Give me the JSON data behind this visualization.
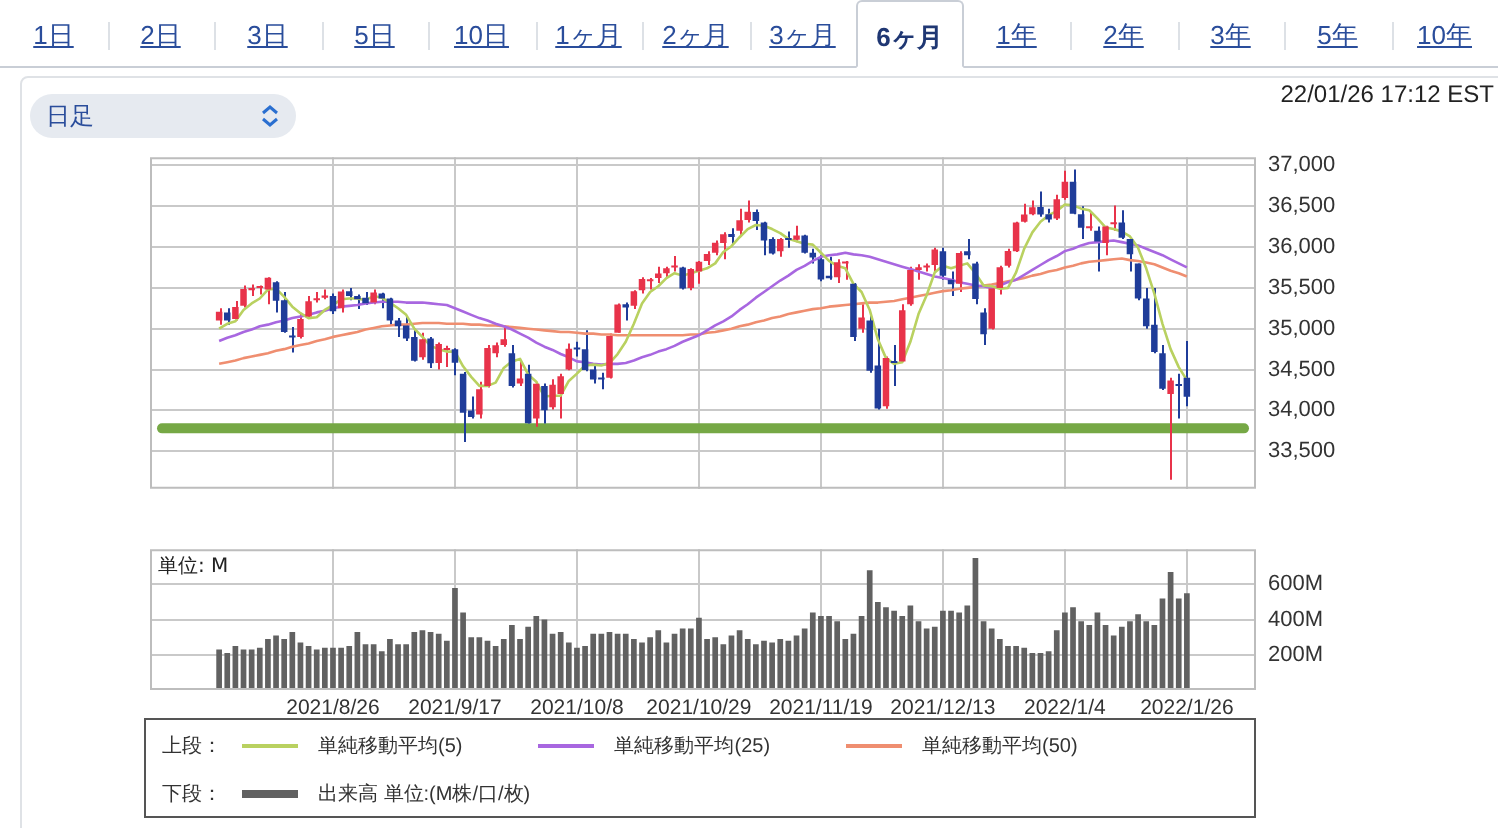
{
  "chart_data": [
    {
      "type": "other",
      "categories": [
        "1日",
        "2日",
        "3日",
        "5日",
        "10日",
        "1ヶ月",
        "2ヶ月",
        "3ヶ月",
        "6ヶ月",
        "1年",
        "2年",
        "3年",
        "5年",
        "10年"
      ],
      "annotations": [
        "日足",
        "22/01/26 17:12 EST"
      ]
    },
    {
      "type": "candlestick",
      "legend": "bottom",
      "legend_title": "上段：",
      "grid": true,
      "tick_labels": "y",
      "marker": "none",
      "categories": [
        null,
        null,
        null,
        null,
        null,
        null,
        null,
        null,
        null,
        null,
        null,
        null,
        null,
        null,
        "2021/8/26",
        null,
        null,
        null,
        null,
        null,
        null,
        null,
        null,
        null,
        null,
        null,
        null,
        null,
        null,
        "2021/9/17",
        null,
        null,
        null,
        null,
        null,
        null,
        null,
        null,
        null,
        null,
        null,
        null,
        null,
        null,
        "2021/10/8",
        null,
        null,
        null,
        null,
        null,
        null,
        null,
        null,
        null,
        null,
        null,
        null,
        null,
        null,
        "2021/10/29",
        null,
        null,
        null,
        null,
        null,
        null,
        null,
        null,
        null,
        null,
        null,
        null,
        null,
        null,
        "2021/11/19",
        null,
        null,
        null,
        null,
        null,
        null,
        null,
        null,
        null,
        null,
        null,
        null,
        null,
        null,
        "2021/12/13",
        null,
        null,
        null,
        null,
        null,
        null,
        null,
        null,
        null,
        null,
        null,
        null,
        null,
        null,
        "2022/1/4",
        null,
        null,
        null,
        null,
        null,
        null,
        null,
        null,
        null,
        null,
        null,
        null,
        null,
        null,
        "2022/1/26"
      ],
      "ohlc": [
        [
          35100,
          35250,
          35050,
          35208
        ],
        [
          35200,
          35250,
          35050,
          35101
        ],
        [
          35120,
          35340,
          35100,
          35265
        ],
        [
          35280,
          35530,
          35260,
          35485
        ],
        [
          35470,
          35540,
          35400,
          35500
        ],
        [
          35500,
          35530,
          35420,
          35515
        ],
        [
          35480,
          35630,
          35300,
          35625
        ],
        [
          35570,
          35580,
          35200,
          35343
        ],
        [
          35350,
          35450,
          34950,
          34961
        ],
        [
          34900,
          35020,
          34710,
          34894
        ],
        [
          34900,
          35180,
          34880,
          35120
        ],
        [
          35150,
          35400,
          35140,
          35336
        ],
        [
          35350,
          35450,
          35320,
          35367
        ],
        [
          35380,
          35480,
          35360,
          35406
        ],
        [
          35400,
          35430,
          35180,
          35214
        ],
        [
          35250,
          35480,
          35200,
          35456
        ],
        [
          35460,
          35500,
          35350,
          35400
        ],
        [
          35400,
          35420,
          35240,
          35361
        ],
        [
          35380,
          35450,
          35290,
          35313
        ],
        [
          35320,
          35480,
          35300,
          35444
        ],
        [
          35430,
          35440,
          35250,
          35369
        ],
        [
          35370,
          35380,
          35050,
          35100
        ],
        [
          35100,
          35130,
          34900,
          35031
        ],
        [
          35040,
          35150,
          34850,
          34879
        ],
        [
          34900,
          35000,
          34600,
          34608
        ],
        [
          34650,
          34950,
          34620,
          34870
        ],
        [
          34880,
          34900,
          34520,
          34578
        ],
        [
          34580,
          34830,
          34500,
          34814
        ],
        [
          34740,
          34790,
          34530,
          34751
        ],
        [
          34750,
          34760,
          34430,
          34584
        ],
        [
          34450,
          34470,
          33613,
          33970
        ],
        [
          34000,
          34170,
          33900,
          33919
        ],
        [
          33950,
          34350,
          33900,
          34258
        ],
        [
          34300,
          34800,
          34280,
          34765
        ],
        [
          34700,
          34830,
          34650,
          34798
        ],
        [
          34800,
          35040,
          34780,
          34870
        ],
        [
          34700,
          34800,
          34280,
          34300
        ],
        [
          34330,
          34600,
          34300,
          34391
        ],
        [
          34450,
          34560,
          33840,
          33844
        ],
        [
          33900,
          34350,
          33800,
          34326
        ],
        [
          34300,
          34330,
          33840,
          34003
        ],
        [
          34040,
          34380,
          34010,
          34315
        ],
        [
          34200,
          34450,
          33900,
          34417
        ],
        [
          34500,
          34820,
          34490,
          34755
        ],
        [
          34760,
          34840,
          34660,
          34746
        ],
        [
          34750,
          34980,
          34480,
          34496
        ],
        [
          34500,
          34560,
          34330,
          34378
        ],
        [
          34400,
          34460,
          34260,
          34377
        ],
        [
          34400,
          34940,
          34390,
          34912
        ],
        [
          34950,
          35310,
          34950,
          35295
        ],
        [
          35300,
          35320,
          35100,
          35259
        ],
        [
          35280,
          35470,
          35240,
          35458
        ],
        [
          35470,
          35630,
          35430,
          35609
        ],
        [
          35580,
          35620,
          35480,
          35603
        ],
        [
          35620,
          35760,
          35560,
          35677
        ],
        [
          35680,
          35760,
          35630,
          35741
        ],
        [
          35750,
          35890,
          35700,
          35757
        ],
        [
          35750,
          35760,
          35480,
          35491
        ],
        [
          35500,
          35740,
          35470,
          35731
        ],
        [
          35700,
          35830,
          35550,
          35820
        ],
        [
          35830,
          35950,
          35780,
          35914
        ],
        [
          35930,
          36080,
          35900,
          36053
        ],
        [
          36050,
          36180,
          35850,
          36158
        ],
        [
          36160,
          36230,
          36030,
          36124
        ],
        [
          36200,
          36470,
          36150,
          36328
        ],
        [
          36330,
          36570,
          36300,
          36432
        ],
        [
          36430,
          36460,
          36210,
          36320
        ],
        [
          36300,
          36310,
          35900,
          36080
        ],
        [
          36100,
          36120,
          35910,
          35921
        ],
        [
          35950,
          36110,
          35880,
          36100
        ],
        [
          36100,
          36190,
          35990,
          36087
        ],
        [
          36090,
          36260,
          36060,
          36142
        ],
        [
          36140,
          36150,
          35920,
          35931
        ],
        [
          35930,
          35980,
          35800,
          35871
        ],
        [
          35850,
          35900,
          35580,
          35602
        ],
        [
          35650,
          35880,
          35600,
          35619
        ],
        [
          35630,
          35850,
          35560,
          35814
        ],
        [
          35800,
          35830,
          35600,
          35804
        ],
        [
          35550,
          35560,
          34850,
          34899
        ],
        [
          35000,
          35300,
          34950,
          35136
        ],
        [
          35100,
          35170,
          34460,
          34484
        ],
        [
          34550,
          35000,
          34010,
          34022
        ],
        [
          34050,
          34660,
          34020,
          34640
        ],
        [
          34600,
          34800,
          34300,
          34580
        ],
        [
          34600,
          35300,
          34600,
          35227
        ],
        [
          35300,
          35760,
          35280,
          35719
        ],
        [
          35720,
          35790,
          35600,
          35754
        ],
        [
          35750,
          35800,
          35700,
          35755
        ],
        [
          35780,
          35990,
          35700,
          35971
        ],
        [
          35950,
          35990,
          35600,
          35650
        ],
        [
          35600,
          35700,
          35400,
          35544
        ],
        [
          35550,
          35950,
          35450,
          35927
        ],
        [
          35950,
          36100,
          35850,
          35898
        ],
        [
          35800,
          35820,
          35300,
          35365
        ],
        [
          35200,
          35250,
          34800,
          34932
        ],
        [
          35000,
          35500,
          34990,
          35493
        ],
        [
          35500,
          35770,
          35420,
          35754
        ],
        [
          35770,
          35980,
          35750,
          35951
        ],
        [
          35950,
          36310,
          35940,
          36302
        ],
        [
          36310,
          36530,
          36300,
          36398
        ],
        [
          36400,
          36570,
          36390,
          36488
        ],
        [
          36490,
          36680,
          36370,
          36398
        ],
        [
          36400,
          36470,
          36300,
          36338
        ],
        [
          36350,
          36640,
          36330,
          36585
        ],
        [
          36600,
          36934,
          36580,
          36800
        ],
        [
          36800,
          36950,
          36400,
          36408
        ],
        [
          36400,
          36500,
          36100,
          36236
        ],
        [
          36230,
          36440,
          36200,
          36232
        ],
        [
          36200,
          36250,
          35700,
          36068
        ],
        [
          36050,
          36260,
          35900,
          36252
        ],
        [
          36280,
          36510,
          36200,
          36290
        ],
        [
          36300,
          36450,
          36100,
          36114
        ],
        [
          36100,
          36120,
          35700,
          35912
        ],
        [
          35800,
          35800,
          35350,
          35369
        ],
        [
          35370,
          35500,
          35000,
          35029
        ],
        [
          35050,
          35500,
          34700,
          34715
        ],
        [
          34700,
          34800,
          34250,
          34265
        ],
        [
          34200,
          34400,
          33150,
          34365
        ],
        [
          34300,
          34450,
          33900,
          34298
        ],
        [
          34400,
          34850,
          34050,
          34168
        ]
      ],
      "colors": [
        "#e8334a",
        "#1f3c99",
        "#e8334a",
        "#e8334a",
        "#e8334a",
        "#e8334a",
        "#e8334a",
        "#1f3c99",
        "#1f3c99",
        "#1f3c99",
        "#e8334a",
        "#e8334a",
        "#e8334a",
        "#e8334a",
        "#1f3c99",
        "#e8334a",
        "#1f3c99",
        "#1f3c99",
        "#1f3c99",
        "#e8334a",
        "#1f3c99",
        "#1f3c99",
        "#1f3c99",
        "#1f3c99",
        "#1f3c99",
        "#e8334a",
        "#1f3c99",
        "#e8334a",
        "#e8334a",
        "#1f3c99",
        "#1f3c99",
        "#1f3c99",
        "#e8334a",
        "#e8334a",
        "#e8334a",
        "#e8334a",
        "#1f3c99",
        "#e8334a",
        "#1f3c99",
        "#e8334a",
        "#1f3c99",
        "#e8334a",
        "#e8334a",
        "#e8334a",
        "#1f3c99",
        "#1f3c99",
        "#1f3c99",
        "#1f3c99",
        "#e8334a",
        "#e8334a",
        "#1f3c99",
        "#e8334a",
        "#e8334a",
        "#e8334a",
        "#e8334a",
        "#e8334a",
        "#e8334a",
        "#1f3c99",
        "#e8334a",
        "#e8334a",
        "#e8334a",
        "#e8334a",
        "#e8334a",
        "#1f3c99",
        "#e8334a",
        "#e8334a",
        "#1f3c99",
        "#1f3c99",
        "#1f3c99",
        "#e8334a",
        "#1f3c99",
        "#e8334a",
        "#1f3c99",
        "#1f3c99",
        "#1f3c99",
        "#1f3c99",
        "#e8334a",
        "#e8334a",
        "#1f3c99",
        "#e8334a",
        "#1f3c99",
        "#1f3c99",
        "#e8334a",
        "#1f3c99",
        "#e8334a",
        "#e8334a",
        "#e8334a",
        "#e8334a",
        "#e8334a",
        "#1f3c99",
        "#1f3c99",
        "#e8334a",
        "#1f3c99",
        "#1f3c99",
        "#1f3c99",
        "#e8334a",
        "#e8334a",
        "#e8334a",
        "#e8334a",
        "#e8334a",
        "#e8334a",
        "#1f3c99",
        "#1f3c99",
        "#e8334a",
        "#e8334a",
        "#1f3c99",
        "#1f3c99",
        "#e8334a",
        "#1f3c99",
        "#e8334a",
        "#e8334a",
        "#1f3c99",
        "#1f3c99",
        "#1f3c99",
        "#1f3c99",
        "#1f3c99",
        "#1f3c99",
        "#e8334a",
        "#1f3c99",
        "#1f3c99"
      ],
      "series": [
        {
          "type": "line",
          "name": "単純移動平均(5)",
          "color": "#b9d160",
          "values": [
            35000,
            35060,
            35090,
            35230,
            35310,
            35370,
            35480,
            35490,
            35390,
            35270,
            35190,
            35130,
            35140,
            35230,
            35290,
            35360,
            35370,
            35370,
            35350,
            35400,
            35380,
            35320,
            35250,
            35170,
            35000,
            34900,
            34790,
            34750,
            34720,
            34720,
            34540,
            34410,
            34300,
            34300,
            34340,
            34520,
            34600,
            34630,
            34440,
            34350,
            34170,
            34180,
            34180,
            34360,
            34450,
            34550,
            34560,
            34550,
            34580,
            34690,
            34840,
            35060,
            35310,
            35450,
            35520,
            35620,
            35680,
            35650,
            35680,
            35710,
            35740,
            35800,
            35940,
            36010,
            36120,
            36220,
            36270,
            36260,
            36220,
            36170,
            36100,
            36070,
            36040,
            36030,
            35930,
            35830,
            35770,
            35740,
            35550,
            35450,
            35230,
            34870,
            34640,
            34570,
            34590,
            34840,
            35180,
            35410,
            35690,
            35770,
            35740,
            35770,
            35800,
            35680,
            35530,
            35520,
            35490,
            35500,
            35690,
            35980,
            36180,
            36310,
            36390,
            36440,
            36520,
            36510,
            36470,
            36450,
            36350,
            36240,
            36220,
            36190,
            36130,
            35990,
            35740,
            35430,
            35060,
            34750,
            34530,
            34370
          ]
        },
        {
          "type": "line",
          "name": "単純移動平均(25)",
          "color": "#a867e0",
          "values": [
            34850,
            34890,
            34920,
            34960,
            34990,
            35030,
            35050,
            35080,
            35100,
            35130,
            35150,
            35170,
            35200,
            35220,
            35250,
            35270,
            35280,
            35290,
            35310,
            35320,
            35330,
            35330,
            35330,
            35320,
            35320,
            35320,
            35310,
            35300,
            35290,
            35250,
            35210,
            35170,
            35130,
            35100,
            35060,
            35030,
            34990,
            34940,
            34890,
            34830,
            34780,
            34740,
            34690,
            34650,
            34600,
            34590,
            34570,
            34560,
            34570,
            34570,
            34580,
            34610,
            34650,
            34680,
            34720,
            34750,
            34790,
            34840,
            34880,
            34920,
            34980,
            35040,
            35090,
            35150,
            35230,
            35300,
            35380,
            35450,
            35520,
            35590,
            35650,
            35720,
            35770,
            35830,
            35880,
            35900,
            35910,
            35930,
            35910,
            35900,
            35880,
            35850,
            35820,
            35790,
            35760,
            35730,
            35700,
            35670,
            35640,
            35620,
            35600,
            35570,
            35550,
            35530,
            35520,
            35500,
            35530,
            35570,
            35600,
            35660,
            35720,
            35780,
            35840,
            35890,
            35950,
            35980,
            36020,
            36050,
            36060,
            36070,
            36080,
            36060,
            36040,
            36020,
            35980,
            35940,
            35900,
            35850,
            35800,
            35750
          ]
        },
        {
          "type": "line",
          "name": "単純移動平均(50)",
          "color": "#ef8e70",
          "values": [
            34570,
            34590,
            34610,
            34640,
            34660,
            34680,
            34700,
            34730,
            34750,
            34780,
            34800,
            34820,
            34850,
            34870,
            34900,
            34920,
            34940,
            34960,
            34990,
            35010,
            35030,
            35040,
            35050,
            35050,
            35060,
            35070,
            35070,
            35070,
            35060,
            35060,
            35060,
            35050,
            35050,
            35040,
            35040,
            35030,
            35020,
            35010,
            35000,
            34990,
            34980,
            34970,
            34960,
            34960,
            34950,
            34940,
            34940,
            34930,
            34930,
            34920,
            34920,
            34920,
            34920,
            34920,
            34920,
            34920,
            34920,
            34920,
            34930,
            34930,
            34950,
            34960,
            34980,
            35000,
            35030,
            35050,
            35080,
            35100,
            35130,
            35150,
            35180,
            35200,
            35220,
            35240,
            35250,
            35270,
            35280,
            35290,
            35300,
            35310,
            35320,
            35320,
            35330,
            35340,
            35360,
            35380,
            35400,
            35420,
            35440,
            35460,
            35470,
            35490,
            35500,
            35510,
            35530,
            35540,
            35560,
            35580,
            35600,
            35620,
            35650,
            35670,
            35700,
            35720,
            35750,
            35770,
            35800,
            35820,
            35830,
            35840,
            35850,
            35860,
            35840,
            35830,
            35810,
            35790,
            35750,
            35710,
            35680,
            35640
          ]
        }
      ],
      "ylim": [
        33040,
        37100
      ],
      "yticks": [
        {
          "value": 33500,
          "label": "33,500"
        },
        {
          "value": 34000,
          "label": "34,000"
        },
        {
          "value": 34500,
          "label": "34,500"
        },
        {
          "value": 35000,
          "label": "35,000"
        },
        {
          "value": 35500,
          "label": "35,500"
        },
        {
          "value": 36000,
          "label": "36,000"
        },
        {
          "value": 36500,
          "label": "36,500"
        },
        {
          "value": 37000,
          "label": "37,000"
        }
      ],
      "ref_lines": [
        {
          "axis": "y",
          "value": 33780,
          "color": "#76a845"
        }
      ]
    },
    {
      "type": "bar",
      "legend": "bottom",
      "legend_title": "下段：",
      "grid": true,
      "ylabel": "単位: M",
      "categories": [
        null,
        null,
        null,
        null,
        null,
        null,
        null,
        null,
        null,
        null,
        null,
        null,
        null,
        null,
        "2021/8/26",
        null,
        null,
        null,
        null,
        null,
        null,
        null,
        null,
        null,
        null,
        null,
        null,
        null,
        null,
        "2021/9/17",
        null,
        null,
        null,
        null,
        null,
        null,
        null,
        null,
        null,
        null,
        null,
        null,
        null,
        null,
        "2021/10/8",
        null,
        null,
        null,
        null,
        null,
        null,
        null,
        null,
        null,
        null,
        null,
        null,
        null,
        null,
        "2021/10/29",
        null,
        null,
        null,
        null,
        null,
        null,
        null,
        null,
        null,
        null,
        null,
        null,
        null,
        null,
        "2021/11/19",
        null,
        null,
        null,
        null,
        null,
        null,
        null,
        null,
        null,
        null,
        null,
        null,
        null,
        null,
        "2021/12/13",
        null,
        null,
        null,
        null,
        null,
        null,
        null,
        null,
        null,
        null,
        null,
        null,
        null,
        null,
        "2022/1/4",
        null,
        null,
        null,
        null,
        null,
        null,
        null,
        null,
        null,
        null,
        null,
        null,
        null,
        null,
        "2022/1/26"
      ],
      "series": [
        {
          "name": "出来高 単位:(M株/口/枚)",
          "color": "#616161",
          "values": [
            230,
            210,
            250,
            230,
            230,
            240,
            290,
            310,
            290,
            330,
            270,
            250,
            230,
            240,
            240,
            240,
            250,
            330,
            260,
            260,
            220,
            290,
            260,
            260,
            330,
            340,
            330,
            320,
            280,
            580,
            440,
            300,
            300,
            280,
            250,
            290,
            370,
            290,
            360,
            420,
            400,
            320,
            330,
            270,
            240,
            250,
            320,
            320,
            330,
            320,
            320,
            290,
            270,
            300,
            340,
            270,
            320,
            350,
            350,
            410,
            290,
            300,
            260,
            310,
            340,
            290,
            260,
            280,
            270,
            290,
            280,
            310,
            350,
            440,
            420,
            420,
            390,
            290,
            320,
            420,
            680,
            500,
            470,
            450,
            420,
            480,
            390,
            350,
            360,
            450,
            450,
            440,
            480,
            750,
            390,
            350,
            290,
            250,
            250,
            240,
            210,
            210,
            220,
            340,
            440,
            470,
            390,
            370,
            440,
            370,
            310,
            360,
            390,
            430,
            390,
            370,
            520,
            670,
            520,
            550
          ]
        }
      ],
      "ylim": [
        0,
        800
      ],
      "yticks": [
        {
          "value": 200,
          "label": "200M"
        },
        {
          "value": 400,
          "label": "400M"
        },
        {
          "value": 600,
          "label": "600M"
        }
      ]
    }
  ]
}
